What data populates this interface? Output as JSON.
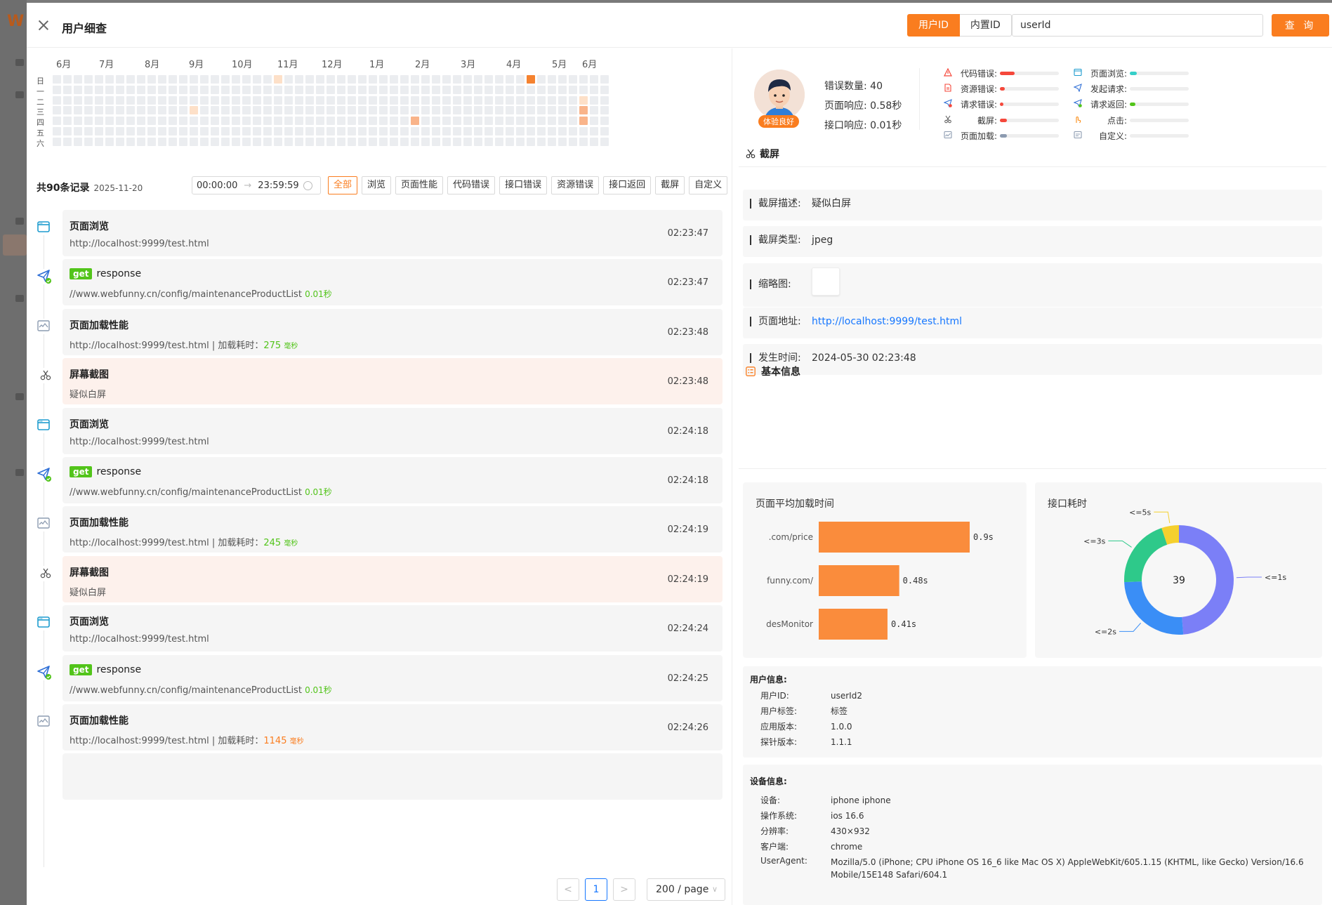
{
  "drawer": {
    "title": "用户细查",
    "id_types": [
      "用户ID",
      "内置ID"
    ],
    "search_value": "userId",
    "search_label": "查 询"
  },
  "heatmap": {
    "months": [
      "6月",
      "7月",
      "8月",
      "9月",
      "10月",
      "11月",
      "12月",
      "1月",
      "2月",
      "3月",
      "4月",
      "5月",
      "6月"
    ],
    "weekdays": [
      "日",
      "一",
      "二",
      "三",
      "四",
      "五",
      "六"
    ],
    "colors": {
      "empty": "#ebedf0",
      "light": "#fde0c8",
      "medium": "#f9b48a",
      "dark": "#f5822f"
    },
    "active_days": [
      {
        "week": 21,
        "day": 0,
        "level": "light"
      },
      {
        "week": 13,
        "day": 3,
        "level": "light"
      },
      {
        "week": 34,
        "day": 4,
        "level": "medium"
      },
      {
        "week": 45,
        "day": 0,
        "level": "dark"
      },
      {
        "week": 50,
        "day": 2,
        "level": "light"
      },
      {
        "week": 50,
        "day": 3,
        "level": "medium"
      },
      {
        "week": 50,
        "day": 4,
        "level": "medium"
      }
    ]
  },
  "records": {
    "count_label": "共90条记录",
    "date": "2025-11-20",
    "time_start": "00:00:00",
    "time_end": "23:59:59",
    "filters": [
      "全部",
      "浏览",
      "页面性能",
      "代码错误",
      "接口错误",
      "资源错误",
      "接口返回",
      "截屏",
      "自定义"
    ]
  },
  "timeline": [
    {
      "type": "view",
      "icon": "browser-icon",
      "title": "页面浏览",
      "sub": "http://localhost:9999/test.html",
      "time": "02:23:47"
    },
    {
      "type": "request",
      "icon": "request-icon",
      "badge": "get",
      "title": "response",
      "sub": "//www.webfunny.cn/config/maintenanceProductList",
      "duration": "0.01秒",
      "time": "02:23:47"
    },
    {
      "type": "perf",
      "icon": "perf-icon",
      "title": "页面加载性能",
      "sub": "http://localhost:9999/test.html | 加载耗时：",
      "load": "275",
      "unit": "毫秒",
      "tone": "green",
      "time": "02:23:48"
    },
    {
      "type": "shot",
      "icon": "scissors-icon",
      "title": "屏幕截图",
      "sub": "疑似白屏",
      "time": "02:23:48"
    },
    {
      "type": "view",
      "icon": "browser-icon",
      "title": "页面浏览",
      "sub": "http://localhost:9999/test.html",
      "time": "02:24:18"
    },
    {
      "type": "request",
      "icon": "request-icon",
      "badge": "get",
      "title": "response",
      "sub": "//www.webfunny.cn/config/maintenanceProductList",
      "duration": "0.01秒",
      "time": "02:24:18"
    },
    {
      "type": "perf",
      "icon": "perf-icon",
      "title": "页面加载性能",
      "sub": "http://localhost:9999/test.html | 加载耗时：",
      "load": "245",
      "unit": "毫秒",
      "tone": "green",
      "time": "02:24:19"
    },
    {
      "type": "shot",
      "icon": "scissors-icon",
      "title": "屏幕截图",
      "sub": "疑似白屏",
      "time": "02:24:19"
    },
    {
      "type": "view",
      "icon": "browser-icon",
      "title": "页面浏览",
      "sub": "http://localhost:9999/test.html",
      "time": "02:24:24"
    },
    {
      "type": "request",
      "icon": "request-icon",
      "badge": "get",
      "title": "response",
      "sub": "//www.webfunny.cn/config/maintenanceProductList",
      "duration": "0.01秒",
      "time": "02:24:25"
    },
    {
      "type": "perf",
      "icon": "perf-icon",
      "title": "页面加载性能",
      "sub": "http://localhost:9999/test.html | 加载耗时：",
      "load": "1145",
      "unit": "毫秒",
      "tone": "orange",
      "time": "02:24:26"
    }
  ],
  "pagination": {
    "prev": "<",
    "current": "1",
    "next": ">",
    "page_size": "200 / page"
  },
  "profile": {
    "badge": "体验良好",
    "stats": [
      "错误数量: 40",
      "页面响应: 0.58秒",
      "接口响应: 0.01秒"
    ]
  },
  "metrics": [
    {
      "label": "代码错误:",
      "icon": "warning-icon",
      "color": "#f5483b",
      "level": 0.25
    },
    {
      "label": "页面浏览:",
      "icon": "browser-icon",
      "color": "#36cfc9",
      "level": 0.12
    },
    {
      "label": "资源错误:",
      "icon": "file-icon",
      "color": "#f5483b",
      "level": 0.08
    },
    {
      "label": "发起请求:",
      "icon": "send-icon",
      "color": "#36cfc9",
      "level": 0.0
    },
    {
      "label": "请求错误:",
      "icon": "request-error-icon",
      "color": "#f5483b",
      "level": 0.06
    },
    {
      "label": "请求返回:",
      "icon": "request-icon",
      "color": "#52c41a",
      "level": 0.1
    },
    {
      "label": "截屏:",
      "icon": "scissors-icon",
      "color": "#f5483b",
      "level": 0.12
    },
    {
      "label": "点击:",
      "icon": "click-icon",
      "color": "#fa8c16",
      "level": 0.0
    },
    {
      "label": "页面加载:",
      "icon": "perf-icon",
      "color": "#8c9bb0",
      "level": 0.12
    },
    {
      "label": "自定义:",
      "icon": "custom-icon",
      "color": "#8c9bb0",
      "level": 0.0
    }
  ],
  "screenshot": {
    "section_title": "截屏",
    "rows": [
      {
        "key": "截屏描述:",
        "value": "疑似白屏"
      },
      {
        "key": "截屏类型:",
        "value": "jpeg"
      },
      {
        "key": "缩略图:",
        "value": ""
      },
      {
        "key": "页面地址:",
        "value": "http://localhost:9999/test.html"
      },
      {
        "key": "发生时间:",
        "value": "2024-05-30 02:23:48"
      }
    ]
  },
  "basic": {
    "section_title": "基本信息"
  },
  "chart_data": [
    {
      "type": "bar",
      "title": "页面平均加载时间",
      "categories": [
        ".com/price",
        "funny.com/",
        "desMonitor"
      ],
      "values": [
        0.9,
        0.48,
        0.41
      ],
      "value_labels": [
        "0.9s",
        "0.48s",
        "0.41s"
      ],
      "orientation": "horizontal",
      "color": "#fa8c3c"
    },
    {
      "type": "pie",
      "title": "接口耗时",
      "center_label": "39",
      "labels": [
        "<=1s",
        "<=2s",
        "<=3s",
        "<=5s"
      ],
      "values": [
        19,
        10,
        8,
        2
      ],
      "colors": [
        "#7b7ff7",
        "#3a8ef6",
        "#2ec98a",
        "#f5d02e"
      ]
    }
  ],
  "user_info": {
    "title": "用户信息:",
    "rows": [
      {
        "key": "用户ID:",
        "value": "userId2"
      },
      {
        "key": "用户标签:",
        "value": "标签"
      },
      {
        "key": "应用版本:",
        "value": "1.0.0"
      },
      {
        "key": "探针版本:",
        "value": "1.1.1"
      }
    ]
  },
  "device_info": {
    "title": "设备信息:",
    "rows": [
      {
        "key": "设备:",
        "value": "iphone iphone"
      },
      {
        "key": "操作系统:",
        "value": "ios 16.6"
      },
      {
        "key": "分辨率:",
        "value": "430×932"
      },
      {
        "key": "客户端:",
        "value": "chrome"
      },
      {
        "key": "UserAgent:",
        "value": "Mozilla/5.0 (iPhone; CPU iPhone OS 16_6 like Mac OS X) AppleWebKit/605.1.15 (KHTML, like Gecko) Version/16.6 Mobile/15E148 Safari/604.1"
      }
    ]
  }
}
